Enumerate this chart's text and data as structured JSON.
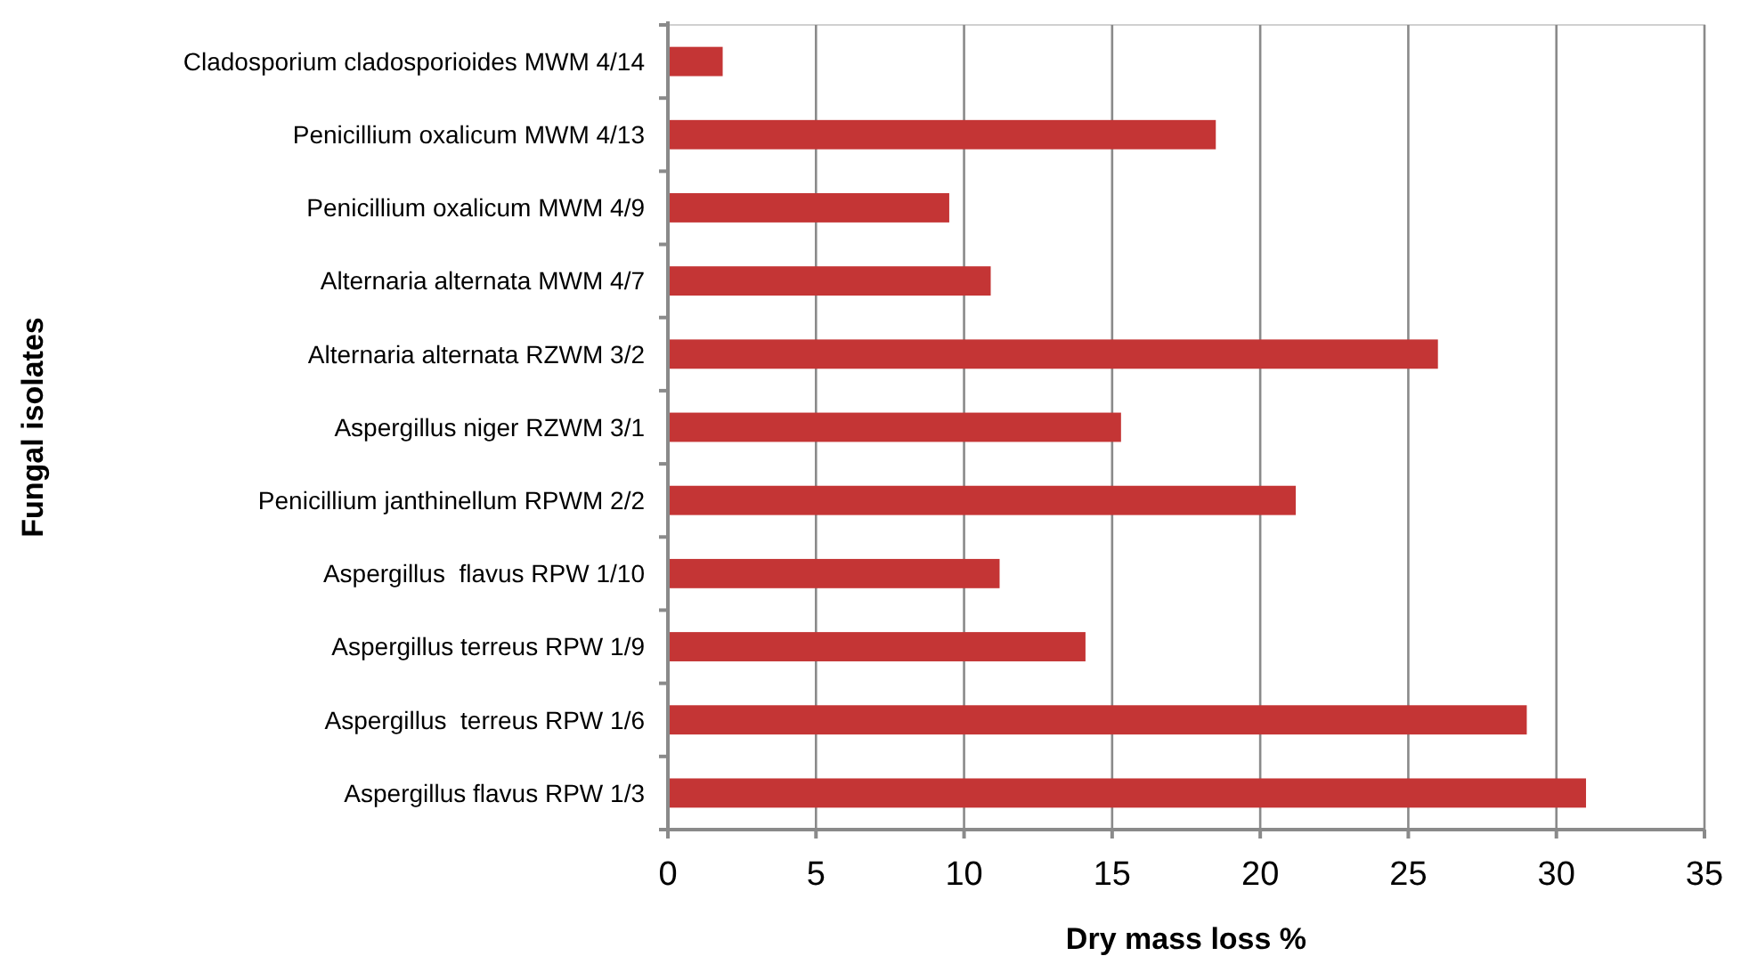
{
  "chart_data": {
    "type": "bar",
    "orientation": "horizontal",
    "xlabel": "Dry mass loss %",
    "ylabel": "Fungal isolates",
    "categories": [
      "Cladosporium cladosporioides MWM 4/14",
      "Penicillium oxalicum MWM 4/13",
      "Penicillium oxalicum MWM 4/9",
      "Alternaria alternata MWM 4/7",
      "Alternaria alternata RZWM 3/2",
      "Aspergillus niger RZWM 3/1",
      "Penicillium janthinellum RPWM 2/2",
      "Aspergillus  flavus RPW 1/10",
      "Aspergillus terreus RPW 1/9",
      "Aspergillus  terreus RPW 1/6",
      "Aspergillus flavus RPW 1/3"
    ],
    "values": [
      1.85,
      18.5,
      9.5,
      10.9,
      26.0,
      15.3,
      21.2,
      11.2,
      14.1,
      29.0,
      31.0
    ],
    "color": "#c43535",
    "xlim": [
      0,
      35
    ],
    "xticks": [
      0,
      5,
      10,
      15,
      20,
      25,
      30,
      35
    ],
    "grid": "x"
  }
}
